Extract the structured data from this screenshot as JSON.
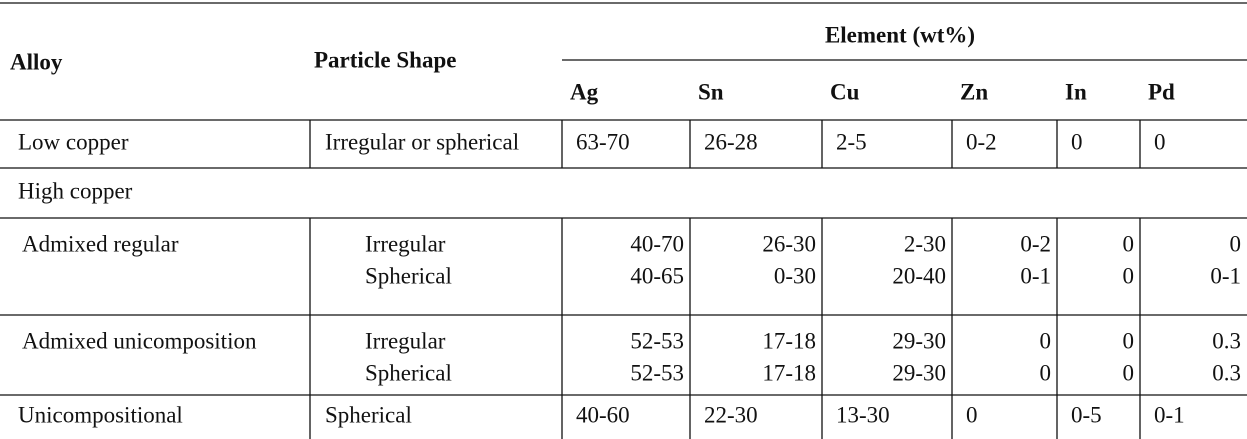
{
  "table": {
    "header": {
      "alloy": "Alloy",
      "particle_shape": "Particle Shape",
      "element_group": "Element (wt%)",
      "elements": [
        "Ag",
        "Sn",
        "Cu",
        "Zn",
        "In",
        "Pd"
      ]
    },
    "rows": [
      {
        "alloy": "Low copper",
        "shapes": [
          "Irregular or spherical"
        ],
        "values": [
          [
            "63-70",
            "26-28",
            "2-5",
            "0-2",
            "0",
            "0"
          ]
        ]
      },
      {
        "alloy": "High copper"
      },
      {
        "alloy": "Admixed regular",
        "shapes": [
          "Irregular",
          "Spherical"
        ],
        "values": [
          [
            "40-70",
            "26-30",
            "2-30",
            "0-2",
            "0",
            "0"
          ],
          [
            "40-65",
            "0-30",
            "20-40",
            "0-1",
            "0",
            "0-1"
          ]
        ]
      },
      {
        "alloy": "Admixed unicomposition",
        "shapes": [
          "Irregular",
          "Spherical"
        ],
        "values": [
          [
            "52-53",
            "17-18",
            "29-30",
            "0",
            "0",
            "0.3"
          ],
          [
            "52-53",
            "17-18",
            "29-30",
            "0",
            "0",
            "0.3"
          ]
        ]
      },
      {
        "alloy": "Unicompositional",
        "shapes": [
          "Spherical"
        ],
        "values": [
          [
            "40-60",
            "22-30",
            "13-30",
            "0",
            "0-5",
            "0-1"
          ]
        ]
      }
    ]
  }
}
